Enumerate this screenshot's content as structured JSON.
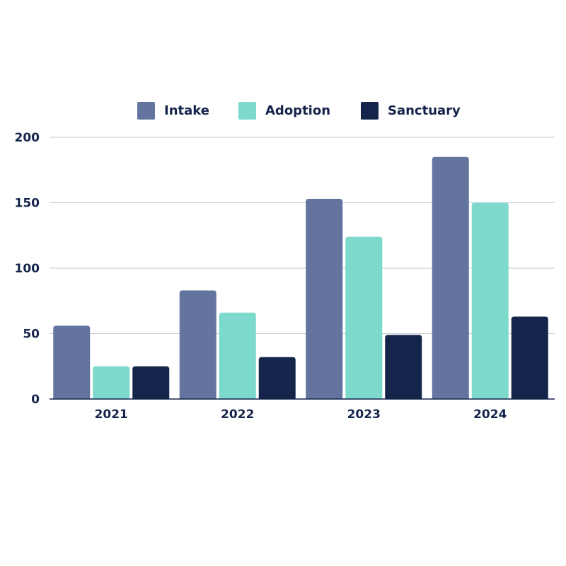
{
  "chart_data": {
    "type": "bar",
    "categories": [
      "2021",
      "2022",
      "2023",
      "2024"
    ],
    "series": [
      {
        "name": "Intake",
        "color": "#63759f",
        "values": [
          56,
          83,
          153,
          185
        ]
      },
      {
        "name": "Adoption",
        "color": "#7dd9cc",
        "values": [
          25,
          66,
          124,
          150
        ]
      },
      {
        "name": "Sanctuary",
        "color": "#15244b",
        "values": [
          25,
          32,
          49,
          63
        ]
      }
    ],
    "ylim": [
      0,
      200
    ],
    "yticks": [
      0,
      50,
      100,
      150,
      200
    ],
    "grid": true,
    "legend_position": "top-center",
    "title": "",
    "xlabel": "",
    "ylabel": ""
  }
}
